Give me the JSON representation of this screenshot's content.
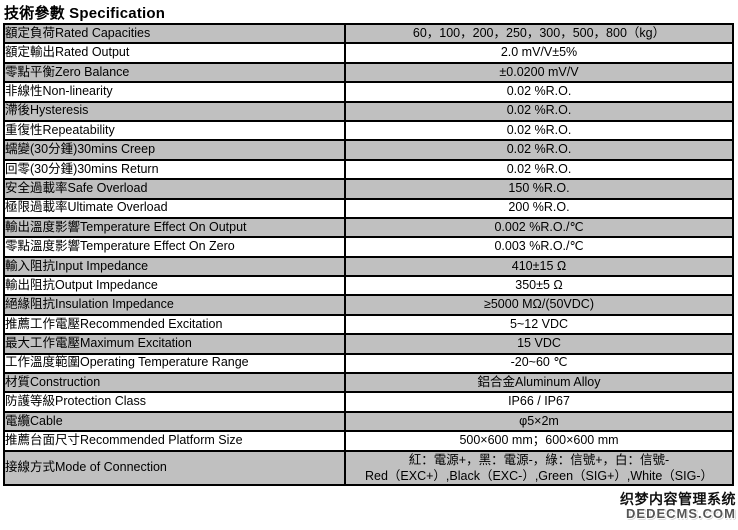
{
  "header": {
    "title": "技術參數 Specification"
  },
  "colors": {
    "row_shaded": "#c0c0c0",
    "row_plain": "#ffffff",
    "border": "#000000",
    "text": "#000000"
  },
  "table": {
    "rows": [
      {
        "label": "額定負荷Rated Capacities",
        "value": "60，100，200，250，300，500，800（kg）"
      },
      {
        "label": "額定輸出Rated Output",
        "value": "2.0 mV/V±5%"
      },
      {
        "label": "零點平衡Zero Balance",
        "value": "±0.0200 mV/V"
      },
      {
        "label": "非線性Non-linearity",
        "value": "0.02 %R.O."
      },
      {
        "label": "滯後Hysteresis",
        "value": "0.02 %R.O."
      },
      {
        "label": "重復性Repeatability",
        "value": "0.02 %R.O."
      },
      {
        "label": "蠕變(30分鍾)30mins Creep",
        "value": "0.02 %R.O."
      },
      {
        "label": "回零(30分鍾)30mins Return",
        "value": "0.02 %R.O."
      },
      {
        "label": "安全過載率Safe Overload",
        "value": "150 %R.O."
      },
      {
        "label": "極限過載率Ultimate Overload",
        "value": "200 %R.O."
      },
      {
        "label": "輸出溫度影響Temperature Effect On Output",
        "value": "0.002 %R.O./℃"
      },
      {
        "label": "零點溫度影響Temperature Effect On Zero",
        "value": "0.003 %R.O./℃"
      },
      {
        "label": "輸入阻抗Input Impedance",
        "value": "410±15 Ω"
      },
      {
        "label": "輸出阻抗Output Impedance",
        "value": "350±5 Ω"
      },
      {
        "label": "絕緣阻抗Insulation Impedance",
        "value": "≥5000 MΩ/(50VDC)"
      },
      {
        "label": "推薦工作電壓Recommended Excitation",
        "value": "5~12 VDC"
      },
      {
        "label": "最大工作電壓Maximum Excitation",
        "value": "15 VDC"
      },
      {
        "label": "工作溫度範圍Operating Temperature Range",
        "value": "-20~60 ℃"
      },
      {
        "label": "材質Construction",
        "value": "鋁合金Aluminum Alloy"
      },
      {
        "label": "防護等級Protection Class",
        "value": "IP66 / IP67"
      },
      {
        "label": "電纜Cable",
        "value": "φ5×2m"
      },
      {
        "label": "推薦台面尺寸Recommended Platform Size",
        "value": "500×600 mm；600×600 mm"
      },
      {
        "label": "接線方式Mode of Connection",
        "value_line1": "紅：電源+，黑：電源-，綠：信號+，白：信號-",
        "value_line2": "Red（EXC+）,Black（EXC-）,Green（SIG+）,White（SIG-）"
      }
    ]
  },
  "watermark": {
    "line1": "织梦内容管理系统",
    "line2": "DEDECMS.COM"
  }
}
